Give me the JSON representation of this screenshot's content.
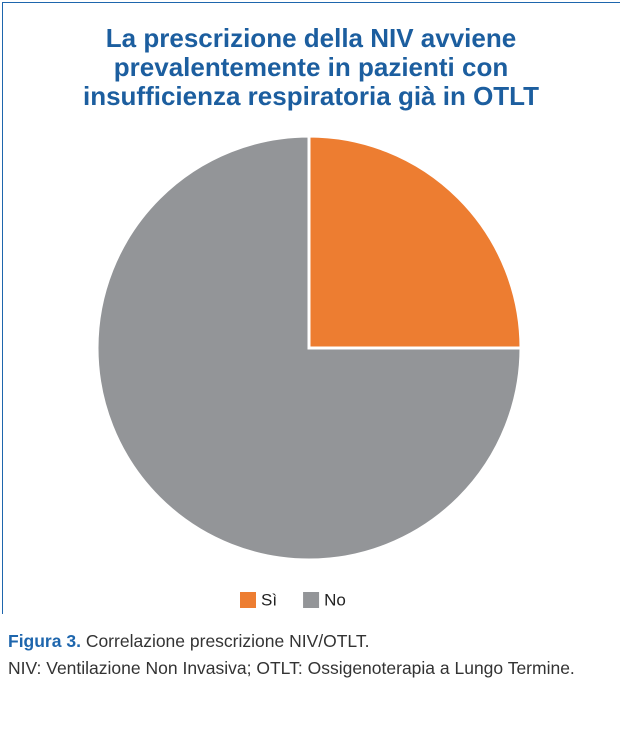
{
  "chart_data": {
    "type": "pie",
    "title": "La prescrizione della NIV avviene prevalentemente in pazienti con insufficienza respiratoria già in OTLT",
    "categories": [
      "Sì",
      "No"
    ],
    "values": [
      25,
      75
    ],
    "colors": [
      "#ed7d31",
      "#939598"
    ],
    "legend": "bottom"
  },
  "caption": {
    "label": "Figura 3.",
    "title": "Correlazione prescrizione NIV/OTLT.",
    "note": "NIV: Ventilazione Non Invasiva; OTLT: Ossigenoterapia a Lungo Termine."
  }
}
